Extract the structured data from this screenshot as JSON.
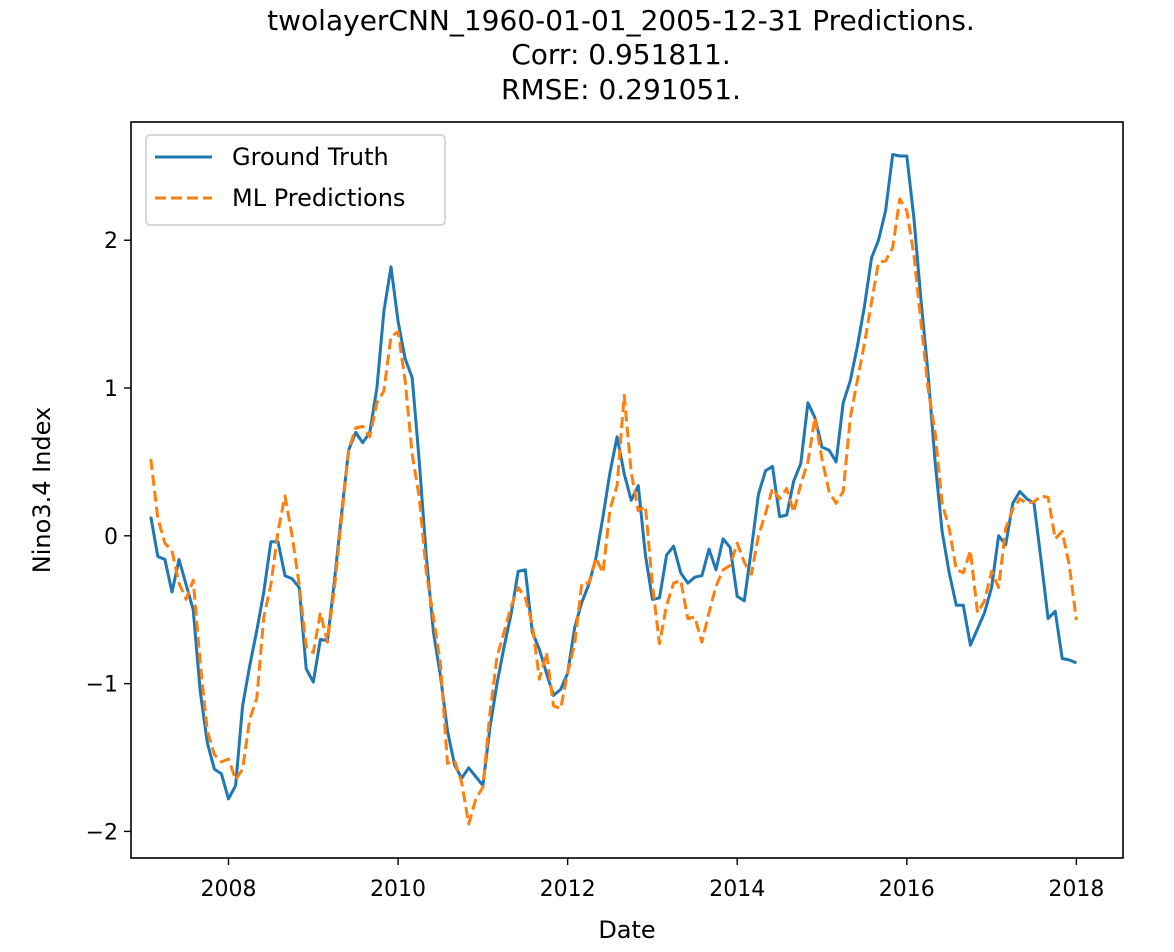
{
  "chart_data": {
    "type": "line",
    "title_lines": [
      "twolayerCNN_1960-01-01_2005-12-31 Predictions.",
      "Corr: 0.951811.",
      "RMSE: 0.291051."
    ],
    "xlabel": "Date",
    "ylabel": "Nino3.4 Index",
    "x_ticks": [
      2008,
      2010,
      2012,
      2014,
      2016,
      2018
    ],
    "y_ticks": [
      -2,
      -1,
      0,
      1,
      2
    ],
    "y_tick_labels": [
      "−2",
      "−1",
      "0",
      "1",
      "2"
    ],
    "xlim": [
      2006.85,
      2018.55
    ],
    "ylim": [
      -2.18,
      2.8
    ],
    "legend_position": "upper-left",
    "series": [
      {
        "name": "Ground Truth",
        "color": "#1f77b4",
        "style": "solid",
        "points": [
          [
            "2007-02",
            0.13
          ],
          [
            "2007-03",
            -0.14
          ],
          [
            "2007-04",
            -0.16
          ],
          [
            "2007-05",
            -0.38
          ],
          [
            "2007-06",
            -0.16
          ],
          [
            "2007-07",
            -0.33
          ],
          [
            "2007-08",
            -0.5
          ],
          [
            "2007-09",
            -1.05
          ],
          [
            "2007-10",
            -1.4
          ],
          [
            "2007-11",
            -1.58
          ],
          [
            "2007-12",
            -1.61
          ],
          [
            "2008-01",
            -1.78
          ],
          [
            "2008-02",
            -1.69
          ],
          [
            "2008-03",
            -1.15
          ],
          [
            "2008-04",
            -0.88
          ],
          [
            "2008-05",
            -0.64
          ],
          [
            "2008-06",
            -0.38
          ],
          [
            "2008-07",
            -0.04
          ],
          [
            "2008-08",
            -0.04
          ],
          [
            "2008-09",
            -0.27
          ],
          [
            "2008-10",
            -0.29
          ],
          [
            "2008-11",
            -0.35
          ],
          [
            "2008-12",
            -0.9
          ],
          [
            "2009-01",
            -0.99
          ],
          [
            "2009-02",
            -0.7
          ],
          [
            "2009-03",
            -0.71
          ],
          [
            "2009-04",
            -0.3
          ],
          [
            "2009-05",
            0.15
          ],
          [
            "2009-06",
            0.58
          ],
          [
            "2009-07",
            0.7
          ],
          [
            "2009-08",
            0.63
          ],
          [
            "2009-09",
            0.7
          ],
          [
            "2009-10",
            1.0
          ],
          [
            "2009-11",
            1.52
          ],
          [
            "2009-12",
            1.82
          ],
          [
            "2010-01",
            1.45
          ],
          [
            "2010-02",
            1.2
          ],
          [
            "2010-03",
            1.07
          ],
          [
            "2010-04",
            0.5
          ],
          [
            "2010-05",
            -0.14
          ],
          [
            "2010-06",
            -0.65
          ],
          [
            "2010-07",
            -0.95
          ],
          [
            "2010-08",
            -1.32
          ],
          [
            "2010-09",
            -1.55
          ],
          [
            "2010-10",
            -1.64
          ],
          [
            "2010-11",
            -1.57
          ],
          [
            "2010-12",
            -1.63
          ],
          [
            "2011-01",
            -1.69
          ],
          [
            "2011-02",
            -1.3
          ],
          [
            "2011-03",
            -1.0
          ],
          [
            "2011-04",
            -0.75
          ],
          [
            "2011-05",
            -0.53
          ],
          [
            "2011-06",
            -0.24
          ],
          [
            "2011-07",
            -0.23
          ],
          [
            "2011-08",
            -0.65
          ],
          [
            "2011-09",
            -0.77
          ],
          [
            "2011-10",
            -0.93
          ],
          [
            "2011-11",
            -1.08
          ],
          [
            "2011-12",
            -1.04
          ],
          [
            "2012-01",
            -0.93
          ],
          [
            "2012-02",
            -0.62
          ],
          [
            "2012-03",
            -0.45
          ],
          [
            "2012-04",
            -0.33
          ],
          [
            "2012-05",
            -0.15
          ],
          [
            "2012-06",
            0.13
          ],
          [
            "2012-07",
            0.43
          ],
          [
            "2012-08",
            0.67
          ],
          [
            "2012-09",
            0.42
          ],
          [
            "2012-10",
            0.24
          ],
          [
            "2012-11",
            0.34
          ],
          [
            "2012-12",
            -0.13
          ],
          [
            "2013-01",
            -0.43
          ],
          [
            "2013-02",
            -0.42
          ],
          [
            "2013-03",
            -0.13
          ],
          [
            "2013-04",
            -0.07
          ],
          [
            "2013-05",
            -0.25
          ],
          [
            "2013-06",
            -0.32
          ],
          [
            "2013-07",
            -0.28
          ],
          [
            "2013-08",
            -0.27
          ],
          [
            "2013-09",
            -0.09
          ],
          [
            "2013-10",
            -0.23
          ],
          [
            "2013-11",
            -0.02
          ],
          [
            "2013-12",
            -0.08
          ],
          [
            "2014-01",
            -0.41
          ],
          [
            "2014-02",
            -0.44
          ],
          [
            "2014-03",
            -0.09
          ],
          [
            "2014-04",
            0.28
          ],
          [
            "2014-05",
            0.44
          ],
          [
            "2014-06",
            0.47
          ],
          [
            "2014-07",
            0.13
          ],
          [
            "2014-08",
            0.14
          ],
          [
            "2014-09",
            0.37
          ],
          [
            "2014-10",
            0.49
          ],
          [
            "2014-11",
            0.9
          ],
          [
            "2014-12",
            0.8
          ],
          [
            "2015-01",
            0.6
          ],
          [
            "2015-02",
            0.58
          ],
          [
            "2015-03",
            0.5
          ],
          [
            "2015-04",
            0.9
          ],
          [
            "2015-05",
            1.05
          ],
          [
            "2015-06",
            1.28
          ],
          [
            "2015-07",
            1.55
          ],
          [
            "2015-08",
            1.88
          ],
          [
            "2015-09",
            2.0
          ],
          [
            "2015-10",
            2.2
          ],
          [
            "2015-11",
            2.58
          ],
          [
            "2015-12",
            2.57
          ],
          [
            "2016-01",
            2.57
          ],
          [
            "2016-02",
            2.15
          ],
          [
            "2016-03",
            1.6
          ],
          [
            "2016-04",
            1.1
          ],
          [
            "2016-05",
            0.5
          ],
          [
            "2016-06",
            0.03
          ],
          [
            "2016-07",
            -0.25
          ],
          [
            "2016-08",
            -0.47
          ],
          [
            "2016-09",
            -0.47
          ],
          [
            "2016-10",
            -0.74
          ],
          [
            "2016-11",
            -0.63
          ],
          [
            "2016-12",
            -0.52
          ],
          [
            "2017-01",
            -0.35
          ],
          [
            "2017-02",
            0.0
          ],
          [
            "2017-03",
            -0.06
          ],
          [
            "2017-04",
            0.22
          ],
          [
            "2017-05",
            0.3
          ],
          [
            "2017-06",
            0.25
          ],
          [
            "2017-07",
            0.22
          ],
          [
            "2017-08",
            -0.16
          ],
          [
            "2017-09",
            -0.56
          ],
          [
            "2017-10",
            -0.51
          ],
          [
            "2017-11",
            -0.83
          ],
          [
            "2017-12",
            -0.84
          ],
          [
            "2018-01",
            -0.86
          ]
        ]
      },
      {
        "name": "ML Predictions",
        "color": "#ff7f0e",
        "style": "dashed",
        "points": [
          [
            "2007-02",
            0.52
          ],
          [
            "2007-03",
            0.12
          ],
          [
            "2007-04",
            -0.05
          ],
          [
            "2007-05",
            -0.1
          ],
          [
            "2007-06",
            -0.32
          ],
          [
            "2007-07",
            -0.43
          ],
          [
            "2007-08",
            -0.3
          ],
          [
            "2007-09",
            -0.86
          ],
          [
            "2007-10",
            -1.32
          ],
          [
            "2007-11",
            -1.48
          ],
          [
            "2007-12",
            -1.53
          ],
          [
            "2008-01",
            -1.51
          ],
          [
            "2008-02",
            -1.65
          ],
          [
            "2008-03",
            -1.58
          ],
          [
            "2008-04",
            -1.24
          ],
          [
            "2008-05",
            -1.1
          ],
          [
            "2008-06",
            -0.55
          ],
          [
            "2008-07",
            -0.33
          ],
          [
            "2008-08",
            0.03
          ],
          [
            "2008-09",
            0.27
          ],
          [
            "2008-10",
            0.0
          ],
          [
            "2008-11",
            -0.33
          ],
          [
            "2008-12",
            -0.75
          ],
          [
            "2009-01",
            -0.79
          ],
          [
            "2009-02",
            -0.52
          ],
          [
            "2009-03",
            -0.72
          ],
          [
            "2009-04",
            -0.35
          ],
          [
            "2009-05",
            0.12
          ],
          [
            "2009-06",
            0.58
          ],
          [
            "2009-07",
            0.73
          ],
          [
            "2009-08",
            0.74
          ],
          [
            "2009-09",
            0.67
          ],
          [
            "2009-10",
            0.9
          ],
          [
            "2009-11",
            0.98
          ],
          [
            "2009-12",
            1.35
          ],
          [
            "2010-01",
            1.38
          ],
          [
            "2010-02",
            1.05
          ],
          [
            "2010-03",
            0.55
          ],
          [
            "2010-04",
            0.26
          ],
          [
            "2010-05",
            -0.25
          ],
          [
            "2010-06",
            -0.55
          ],
          [
            "2010-07",
            -0.87
          ],
          [
            "2010-08",
            -1.54
          ],
          [
            "2010-09",
            -1.52
          ],
          [
            "2010-10",
            -1.67
          ],
          [
            "2010-11",
            -1.95
          ],
          [
            "2010-12",
            -1.78
          ],
          [
            "2011-01",
            -1.7
          ],
          [
            "2011-02",
            -1.2
          ],
          [
            "2011-03",
            -0.82
          ],
          [
            "2011-04",
            -0.65
          ],
          [
            "2011-05",
            -0.48
          ],
          [
            "2011-06",
            -0.35
          ],
          [
            "2011-07",
            -0.42
          ],
          [
            "2011-08",
            -0.6
          ],
          [
            "2011-09",
            -0.97
          ],
          [
            "2011-10",
            -0.79
          ],
          [
            "2011-11",
            -1.15
          ],
          [
            "2011-12",
            -1.17
          ],
          [
            "2012-01",
            -0.93
          ],
          [
            "2012-02",
            -0.73
          ],
          [
            "2012-03",
            -0.32
          ],
          [
            "2012-04",
            -0.32
          ],
          [
            "2012-05",
            -0.15
          ],
          [
            "2012-06",
            -0.25
          ],
          [
            "2012-07",
            0.18
          ],
          [
            "2012-08",
            0.34
          ],
          [
            "2012-09",
            0.95
          ],
          [
            "2012-10",
            0.43
          ],
          [
            "2012-11",
            0.17
          ],
          [
            "2012-12",
            0.2
          ],
          [
            "2013-01",
            -0.33
          ],
          [
            "2013-02",
            -0.73
          ],
          [
            "2013-03",
            -0.47
          ],
          [
            "2013-04",
            -0.32
          ],
          [
            "2013-05",
            -0.3
          ],
          [
            "2013-06",
            -0.56
          ],
          [
            "2013-07",
            -0.55
          ],
          [
            "2013-08",
            -0.72
          ],
          [
            "2013-09",
            -0.52
          ],
          [
            "2013-10",
            -0.34
          ],
          [
            "2013-11",
            -0.23
          ],
          [
            "2013-12",
            -0.2
          ],
          [
            "2014-01",
            -0.05
          ],
          [
            "2014-02",
            -0.18
          ],
          [
            "2014-03",
            -0.26
          ],
          [
            "2014-04",
            0.0
          ],
          [
            "2014-05",
            0.15
          ],
          [
            "2014-06",
            0.32
          ],
          [
            "2014-07",
            0.25
          ],
          [
            "2014-08",
            0.32
          ],
          [
            "2014-09",
            0.16
          ],
          [
            "2014-10",
            0.35
          ],
          [
            "2014-11",
            0.5
          ],
          [
            "2014-12",
            0.8
          ],
          [
            "2015-01",
            0.52
          ],
          [
            "2015-02",
            0.3
          ],
          [
            "2015-03",
            0.22
          ],
          [
            "2015-04",
            0.3
          ],
          [
            "2015-05",
            0.8
          ],
          [
            "2015-06",
            1.05
          ],
          [
            "2015-07",
            1.3
          ],
          [
            "2015-08",
            1.58
          ],
          [
            "2015-09",
            1.85
          ],
          [
            "2015-10",
            1.86
          ],
          [
            "2015-11",
            1.95
          ],
          [
            "2015-12",
            2.28
          ],
          [
            "2016-01",
            2.2
          ],
          [
            "2016-02",
            1.9
          ],
          [
            "2016-03",
            1.45
          ],
          [
            "2016-04",
            1.0
          ],
          [
            "2016-05",
            0.7
          ],
          [
            "2016-06",
            0.22
          ],
          [
            "2016-07",
            0.05
          ],
          [
            "2016-08",
            -0.23
          ],
          [
            "2016-09",
            -0.25
          ],
          [
            "2016-10",
            -0.1
          ],
          [
            "2016-11",
            -0.52
          ],
          [
            "2016-12",
            -0.44
          ],
          [
            "2017-01",
            -0.24
          ],
          [
            "2017-02",
            -0.35
          ],
          [
            "2017-03",
            0.05
          ],
          [
            "2017-04",
            0.18
          ],
          [
            "2017-05",
            0.25
          ],
          [
            "2017-06",
            0.22
          ],
          [
            "2017-07",
            0.23
          ],
          [
            "2017-08",
            0.27
          ],
          [
            "2017-09",
            0.26
          ],
          [
            "2017-10",
            -0.02
          ],
          [
            "2017-11",
            0.03
          ],
          [
            "2017-12",
            -0.2
          ],
          [
            "2018-01",
            -0.57
          ]
        ]
      }
    ]
  }
}
